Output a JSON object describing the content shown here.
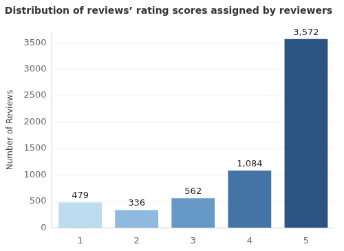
{
  "chart_data": {
    "type": "bar",
    "title": "Distribution of reviews’ rating scores assigned by reviewers",
    "ylabel": "Number of Reviews",
    "categories": [
      "1",
      "2",
      "3",
      "4",
      "5"
    ],
    "values": [
      479,
      336,
      562,
      1084,
      3572
    ],
    "value_labels": [
      "479",
      "336",
      "562",
      "1,084",
      "3,572"
    ],
    "colors": [
      "#bcdcf0",
      "#8fb9de",
      "#6699c6",
      "#4474a5",
      "#2b5482"
    ],
    "ylim": [
      0,
      3700
    ],
    "yticks": [
      0,
      500,
      1000,
      1500,
      2000,
      2500,
      3000,
      3500
    ],
    "grid": true,
    "data_labels": true
  }
}
